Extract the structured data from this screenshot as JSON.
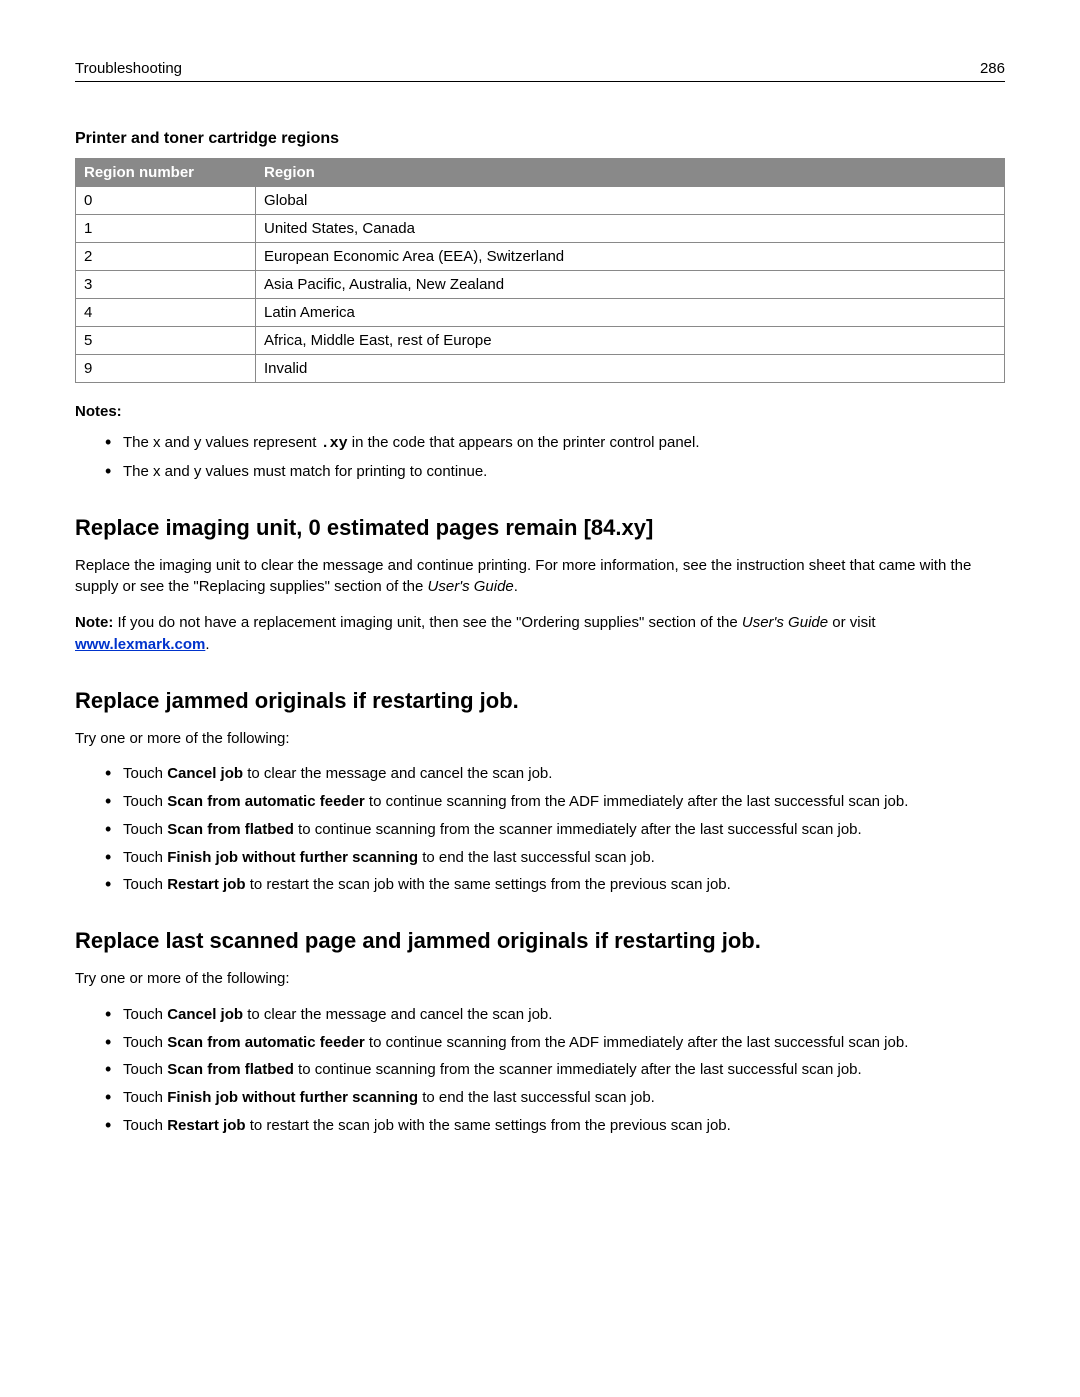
{
  "header": {
    "section": "Troubleshooting",
    "page": "286"
  },
  "regionTable": {
    "title": "Printer and toner cartridge regions",
    "columns": [
      "Region number",
      "Region"
    ],
    "rows": [
      [
        "0",
        "Global"
      ],
      [
        "1",
        "United States, Canada"
      ],
      [
        "2",
        "European Economic Area (EEA), Switzerland"
      ],
      [
        "3",
        "Asia Pacific, Australia, New Zealand"
      ],
      [
        "4",
        "Latin America"
      ],
      [
        "5",
        "Africa, Middle East, rest of Europe"
      ],
      [
        "9",
        "Invalid"
      ]
    ]
  },
  "notes": {
    "label": "Notes:",
    "items": [
      {
        "pre": "The x and y values represent ",
        "mono": ".xy",
        "post": " in the code that appears on the printer control panel."
      },
      {
        "pre": "The x and y values must match for printing to continue.",
        "mono": "",
        "post": ""
      }
    ]
  },
  "section1": {
    "heading": "Replace imaging unit, 0 estimated pages remain [84.xy]",
    "para1_pre": "Replace the imaging unit to clear the message and continue printing. For more information, see the instruction sheet that came with the supply or see the \"Replacing supplies\" section of the ",
    "para1_italic": "User's Guide",
    "para1_post": ".",
    "note_bold": "Note:",
    "note_text1": " If you do not have a replacement imaging unit, then see the \"Ordering supplies\" section of the ",
    "note_italic": "User's Guide",
    "note_text2": " or visit ",
    "note_link": "www.lexmark.com",
    "note_text3": "."
  },
  "section2": {
    "heading": "Replace jammed originals if restarting job.",
    "intro": "Try one or more of the following:",
    "items": [
      {
        "pre": "Touch ",
        "bold": "Cancel job",
        "post": " to clear the message and cancel the scan job."
      },
      {
        "pre": "Touch ",
        "bold": "Scan from automatic feeder",
        "post": " to continue scanning from the ADF immediately after the last successful scan job."
      },
      {
        "pre": "Touch ",
        "bold": "Scan from flatbed",
        "post": " to continue scanning from the scanner immediately after the last successful scan job."
      },
      {
        "pre": "Touch ",
        "bold": "Finish job without further scanning",
        "post": " to end the last successful scan job."
      },
      {
        "pre": "Touch ",
        "bold": "Restart job",
        "post": " to restart the scan job with the same settings from the previous scan job."
      }
    ]
  },
  "section3": {
    "heading": "Replace last scanned page and jammed originals if restarting job.",
    "intro": "Try one or more of the following:",
    "items": [
      {
        "pre": "Touch ",
        "bold": "Cancel job",
        "post": " to clear the message and cancel the scan job."
      },
      {
        "pre": "Touch ",
        "bold": "Scan from automatic feeder",
        "post": " to continue scanning from the ADF immediately after the last successful scan job."
      },
      {
        "pre": "Touch ",
        "bold": "Scan from flatbed",
        "post": " to continue scanning from the scanner immediately after the last successful scan job."
      },
      {
        "pre": "Touch ",
        "bold": "Finish job without further scanning",
        "post": " to end the last successful scan job."
      },
      {
        "pre": "Touch ",
        "bold": "Restart job",
        "post": " to restart the scan job with the same settings from the previous scan job."
      }
    ]
  }
}
